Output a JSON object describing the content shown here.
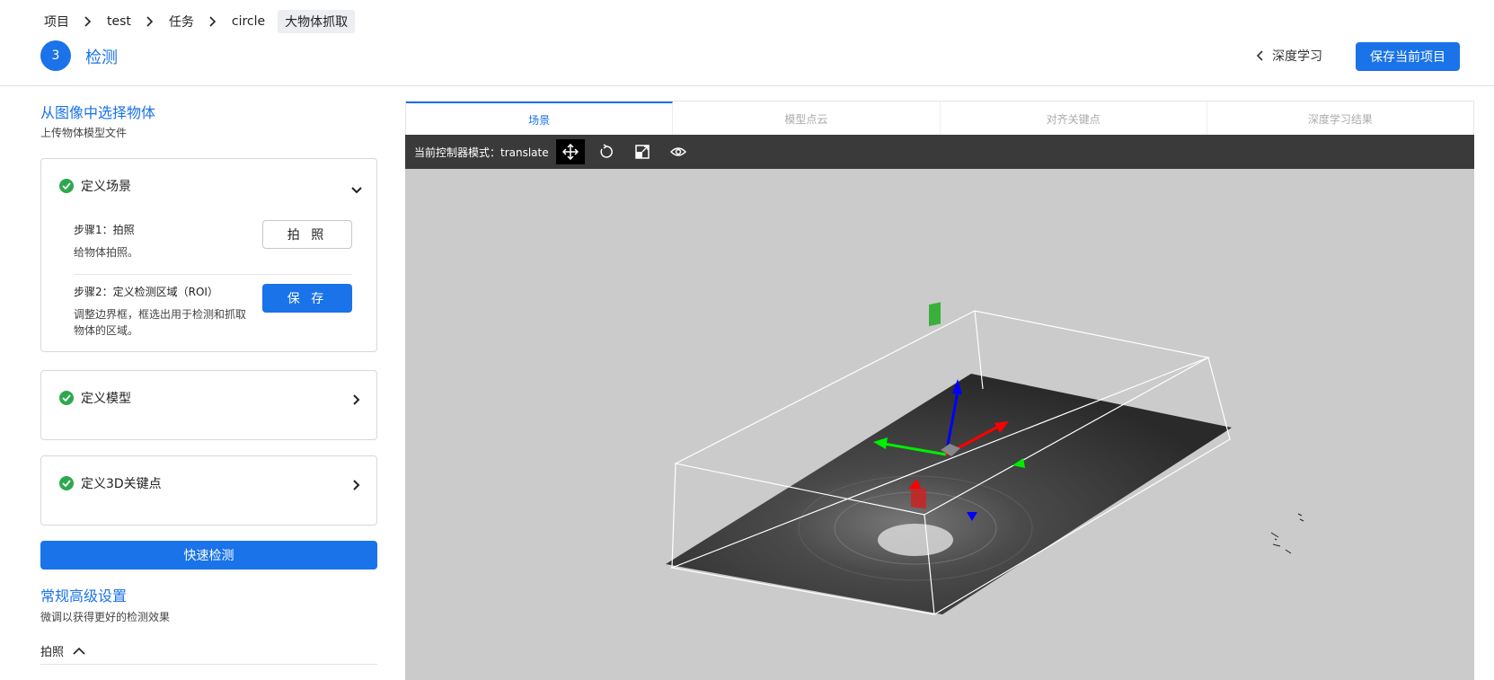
{
  "breadcrumb": {
    "items": [
      "项目",
      "test",
      "任务",
      "circle"
    ],
    "current": "大物体抓取"
  },
  "step": {
    "number": "3",
    "title": "检测"
  },
  "header": {
    "back_label": "深度学习",
    "save_label": "保存当前项目"
  },
  "left": {
    "title": "从图像中选择物体",
    "subtitle": "上传物体模型文件",
    "cards": [
      {
        "title": "定义场景",
        "steps": [
          {
            "label": "步骤1：拍照",
            "desc": "给物体拍照。",
            "button": "拍 照"
          },
          {
            "label": "步骤2：定义检测区域（ROI）",
            "desc": "调整边界框，框选出用于检测和抓取物体的区域。",
            "button": "保 存"
          }
        ]
      },
      {
        "title": "定义模型"
      },
      {
        "title": "定义3D关键点"
      }
    ],
    "quick_detect": "快速检测",
    "advanced_title": "常规高级设置",
    "advanced_subtitle": "微调以获得更好的检测效果",
    "collapse_label": "拍照"
  },
  "tabs": [
    "场景",
    "模型点云",
    "对齐关键点",
    "深度学习结果"
  ],
  "active_tab": 0,
  "toolbar": {
    "mode_label": "当前控制器模式：translate",
    "tools": [
      "move-icon",
      "rotate-icon",
      "scale-icon",
      "eye-icon"
    ]
  },
  "colors": {
    "accent": "#1a73e8",
    "success": "#2ea84f",
    "toolbar_bg": "#3a3a3a",
    "viewport_bg": "#cbcbcb"
  }
}
